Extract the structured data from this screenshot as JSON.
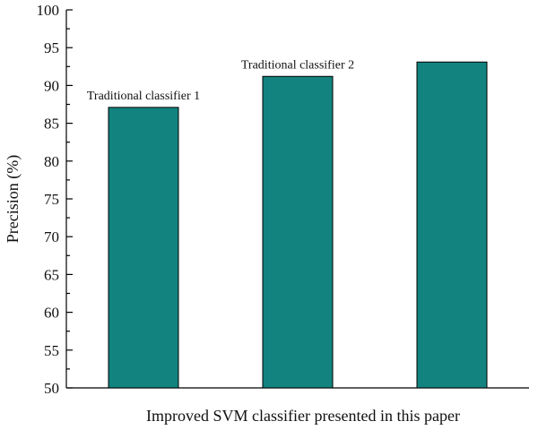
{
  "chart_data": {
    "type": "bar",
    "categories": [
      "Traditional classifier 1",
      "Traditional classifier 2",
      ""
    ],
    "values": [
      87.1,
      91.2,
      93.1
    ],
    "bar_labels": [
      "Traditional classifier 1",
      "Traditional classifier 2",
      ""
    ],
    "xlabel": "Improved SVM classifier presented in this paper",
    "ylabel": "Precision (%)",
    "ylim": [
      50,
      100
    ],
    "yticks": [
      50,
      55,
      60,
      65,
      70,
      75,
      80,
      85,
      90,
      95,
      100
    ],
    "grid": false,
    "bar_color": "#12837f"
  }
}
